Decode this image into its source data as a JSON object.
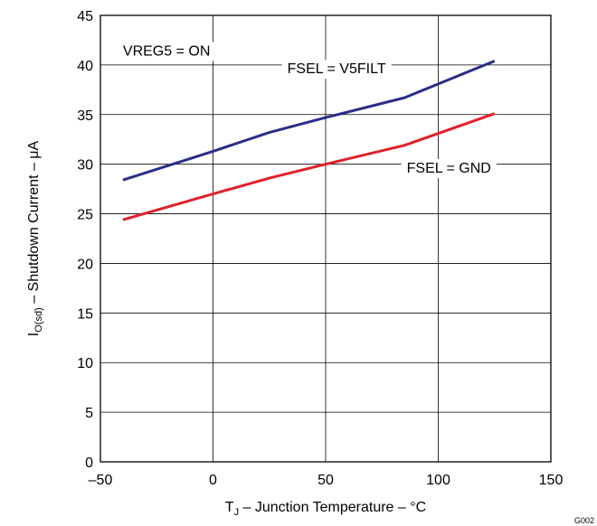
{
  "chart_data": {
    "type": "line",
    "title": "",
    "xlabel": {
      "main": "T",
      "sub": "J",
      "rest": " – Junction Temperature – °C"
    },
    "ylabel": {
      "main": "I",
      "sub": "O(sd)",
      "rest": " – Shutdown Current – μA"
    },
    "xlim": [
      -50,
      150
    ],
    "ylim": [
      0,
      45
    ],
    "xticks": [
      -50,
      0,
      50,
      100,
      150
    ],
    "xtick_labels": [
      "–50",
      "0",
      "50",
      "100",
      "150"
    ],
    "yticks": [
      0,
      5,
      10,
      15,
      20,
      25,
      30,
      35,
      40,
      45
    ],
    "ytick_labels": [
      "0",
      "5",
      "10",
      "15",
      "20",
      "25",
      "30",
      "35",
      "40",
      "45"
    ],
    "grid": true,
    "series": [
      {
        "name": "FSEL = V5FILT",
        "color": "#2b2e87",
        "x": [
          -40,
          0,
          25,
          50,
          85,
          125
        ],
        "y": [
          28.4,
          31.3,
          33.2,
          34.7,
          36.7,
          40.4
        ]
      },
      {
        "name": "FSEL = GND",
        "color": "#e0202a",
        "x": [
          -40,
          0,
          25,
          50,
          85,
          125
        ],
        "y": [
          24.4,
          27.0,
          28.6,
          30.0,
          31.9,
          35.1
        ]
      }
    ],
    "annotations": [
      {
        "text": "VREG5 = ON",
        "x": -40,
        "y": 41.5
      },
      {
        "text": "FSEL = V5FILT",
        "x": 33,
        "y": 39.7
      },
      {
        "text": "FSEL = GND",
        "x": 86,
        "y": 29.7
      }
    ],
    "corner_label": "G002"
  }
}
